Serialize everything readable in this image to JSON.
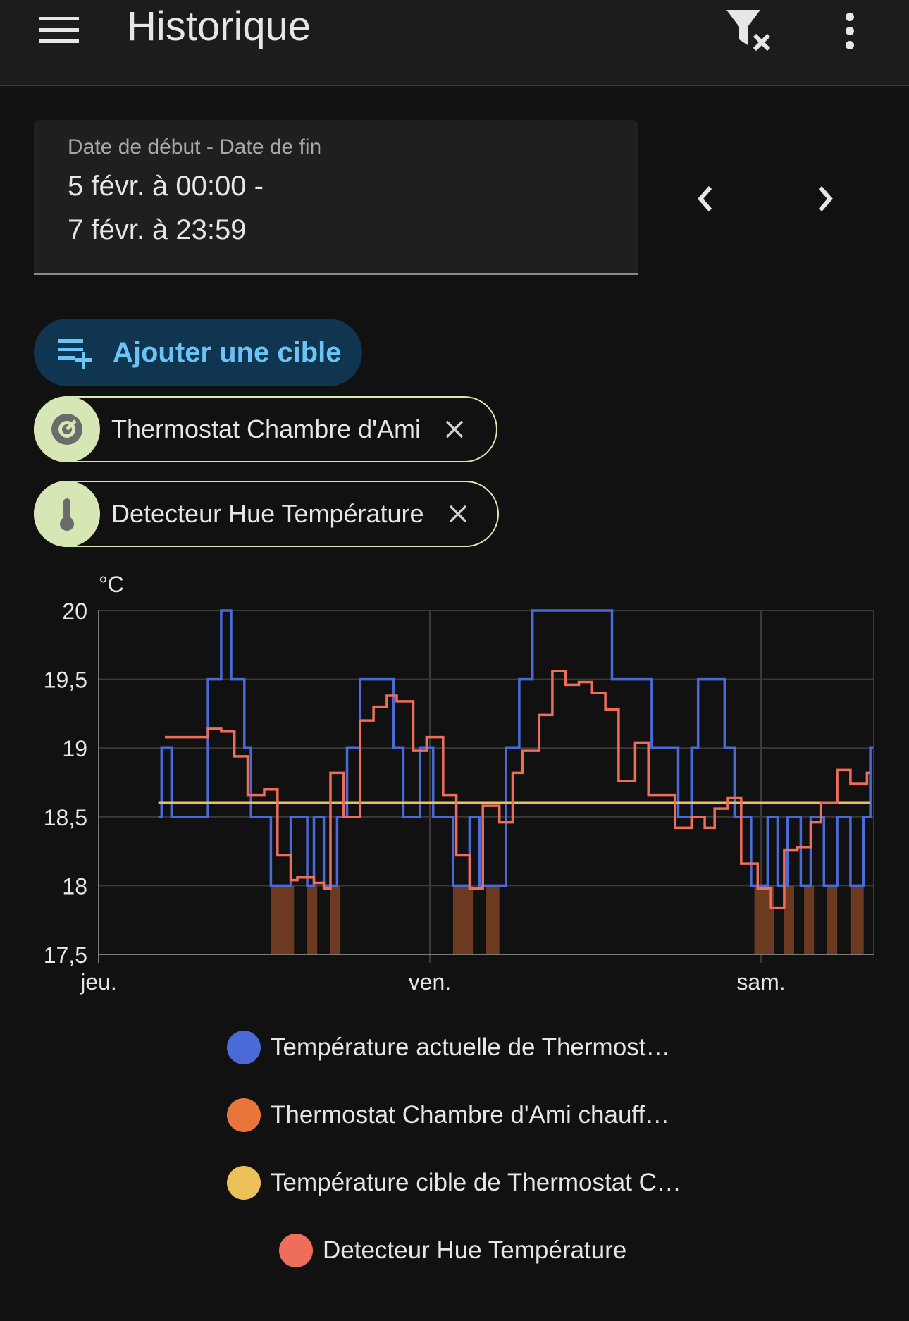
{
  "header": {
    "title": "Historique",
    "menu_icon": "menu-icon",
    "filter_icon": "filter-remove-icon",
    "more_icon": "more-vertical-icon"
  },
  "date_range": {
    "label": "Date de début - Date de fin",
    "start": "5 févr. à 00:00 -",
    "end": "7 févr. à 23:59"
  },
  "actions": {
    "add_target_label": "Ajouter une cible"
  },
  "targets": [
    {
      "label": "Thermostat Chambre d'Ami",
      "icon": "thermostat-icon"
    },
    {
      "label": "Detecteur Hue Température",
      "icon": "thermometer-icon"
    }
  ],
  "colors": {
    "accent": "#6cc3f5",
    "current_temp": "#4a6ad8",
    "heating": "#e8763a",
    "target_temp": "#ecc15a",
    "hue_temp": "#ee6e5a",
    "heating_bar": "#6b3a20"
  },
  "chart_data": {
    "type": "line",
    "unit_label": "°C",
    "ylim": [
      17.5,
      20
    ],
    "y_ticks": [
      "20",
      "19,5",
      "19",
      "18,5",
      "18",
      "17,5"
    ],
    "x_ticks": [
      "jeu.",
      "ven.",
      "sam."
    ],
    "x_range_days": [
      0,
      2.33
    ],
    "grid": true,
    "series": [
      {
        "name": "Température actuelle de Thermost…",
        "style": "step",
        "points": [
          [
            0.18,
            18.5
          ],
          [
            0.19,
            19.0
          ],
          [
            0.22,
            18.5
          ],
          [
            0.33,
            18.5
          ],
          [
            0.33,
            19.5
          ],
          [
            0.37,
            20.0
          ],
          [
            0.4,
            19.5
          ],
          [
            0.44,
            19.0
          ],
          [
            0.46,
            18.5
          ],
          [
            0.52,
            18.0
          ],
          [
            0.58,
            18.5
          ],
          [
            0.63,
            18.0
          ],
          [
            0.65,
            18.5
          ],
          [
            0.68,
            18.0
          ],
          [
            0.72,
            18.5
          ],
          [
            0.75,
            19.0
          ],
          [
            0.79,
            19.5
          ],
          [
            0.89,
            19.0
          ],
          [
            0.92,
            18.5
          ],
          [
            0.97,
            19.0
          ],
          [
            1.01,
            18.5
          ],
          [
            1.07,
            18.0
          ],
          [
            1.12,
            18.5
          ],
          [
            1.15,
            18.0
          ],
          [
            1.23,
            19.0
          ],
          [
            1.27,
            19.5
          ],
          [
            1.31,
            20.0
          ],
          [
            1.55,
            19.5
          ],
          [
            1.67,
            19.0
          ],
          [
            1.75,
            18.5
          ],
          [
            1.79,
            19.0
          ],
          [
            1.81,
            19.5
          ],
          [
            1.89,
            19.0
          ],
          [
            1.92,
            18.5
          ],
          [
            1.97,
            18.0
          ],
          [
            2.02,
            18.5
          ],
          [
            2.05,
            18.0
          ],
          [
            2.08,
            18.5
          ],
          [
            2.12,
            18.0
          ],
          [
            2.15,
            18.5
          ],
          [
            2.19,
            18.0
          ],
          [
            2.23,
            18.5
          ],
          [
            2.27,
            18.0
          ],
          [
            2.31,
            18.5
          ],
          [
            2.33,
            19.0
          ]
        ]
      },
      {
        "name": "Thermostat Chambre d'Ami chauff…",
        "style": "bars",
        "bars": [
          [
            0.52,
            0.59
          ],
          [
            0.63,
            0.66
          ],
          [
            0.7,
            0.73
          ],
          [
            1.07,
            1.13
          ],
          [
            1.17,
            1.21
          ],
          [
            1.98,
            2.04
          ],
          [
            2.07,
            2.1
          ],
          [
            2.13,
            2.16
          ],
          [
            2.2,
            2.23
          ],
          [
            2.27,
            2.31
          ]
        ]
      },
      {
        "name": "Température cible de Thermostat C…",
        "style": "line",
        "points": [
          [
            0.18,
            18.6
          ],
          [
            2.33,
            18.6
          ]
        ]
      },
      {
        "name": "Detecteur Hue Température",
        "style": "step",
        "points": [
          [
            0.2,
            19.08
          ],
          [
            0.33,
            19.14
          ],
          [
            0.37,
            19.12
          ],
          [
            0.41,
            18.94
          ],
          [
            0.45,
            18.66
          ],
          [
            0.5,
            18.7
          ],
          [
            0.54,
            18.22
          ],
          [
            0.58,
            18.04
          ],
          [
            0.6,
            18.06
          ],
          [
            0.65,
            18.02
          ],
          [
            0.68,
            17.98
          ],
          [
            0.7,
            18.82
          ],
          [
            0.74,
            18.5
          ],
          [
            0.79,
            19.2
          ],
          [
            0.83,
            19.3
          ],
          [
            0.87,
            19.38
          ],
          [
            0.9,
            19.34
          ],
          [
            0.95,
            18.98
          ],
          [
            0.99,
            19.08
          ],
          [
            1.04,
            18.66
          ],
          [
            1.08,
            18.22
          ],
          [
            1.12,
            17.98
          ],
          [
            1.16,
            18.58
          ],
          [
            1.21,
            18.46
          ],
          [
            1.25,
            18.82
          ],
          [
            1.28,
            18.98
          ],
          [
            1.33,
            19.24
          ],
          [
            1.37,
            19.56
          ],
          [
            1.41,
            19.46
          ],
          [
            1.45,
            19.48
          ],
          [
            1.49,
            19.4
          ],
          [
            1.53,
            19.28
          ],
          [
            1.57,
            18.76
          ],
          [
            1.62,
            19.04
          ],
          [
            1.66,
            18.66
          ],
          [
            1.74,
            18.42
          ],
          [
            1.79,
            18.5
          ],
          [
            1.83,
            18.42
          ],
          [
            1.86,
            18.56
          ],
          [
            1.9,
            18.64
          ],
          [
            1.94,
            18.16
          ],
          [
            1.99,
            17.98
          ],
          [
            2.03,
            17.84
          ],
          [
            2.07,
            18.26
          ],
          [
            2.11,
            18.28
          ],
          [
            2.15,
            18.46
          ],
          [
            2.18,
            18.6
          ],
          [
            2.23,
            18.84
          ],
          [
            2.27,
            18.74
          ],
          [
            2.32,
            18.82
          ]
        ]
      }
    ]
  },
  "legend": [
    {
      "label": "Température actuelle de Thermost…",
      "color": "#4a6ad8"
    },
    {
      "label": "Thermostat Chambre d'Ami chauff…",
      "color": "#e8763a"
    },
    {
      "label": "Température cible de Thermostat C…",
      "color": "#ecc15a"
    },
    {
      "label": "Detecteur Hue Température",
      "color": "#ee6e5a"
    }
  ]
}
